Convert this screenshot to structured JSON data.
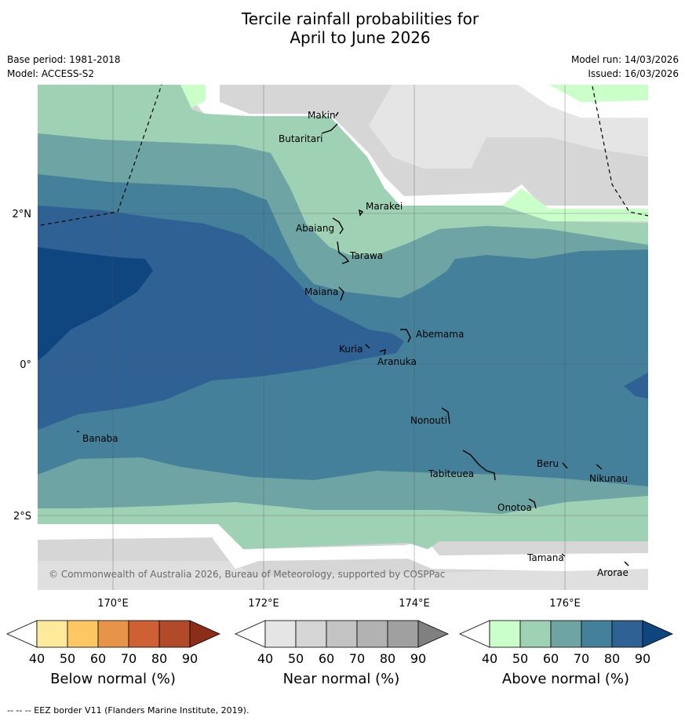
{
  "title_line1": "Tercile rainfall probabilities for",
  "title_line2": "April to June 2026",
  "base_period": "Base period: 1981-2018",
  "model": "Model: ACCESS-S2",
  "model_run": "Model run: 14/03/2026",
  "issued": "Issued: 16/03/2026",
  "axes": {
    "x_ticks": [
      "170°E",
      "172°E",
      "174°E",
      "176°E"
    ],
    "y_ticks": [
      "2°N",
      "0°",
      "2°S"
    ]
  },
  "places": [
    "Makin",
    "Butaritari",
    "Marakei",
    "Abaiang",
    "Tarawa",
    "Maiana",
    "Abemama",
    "Kuria",
    "Aranuka",
    "Banaba",
    "Nonouti",
    "Tabiteuea",
    "Beru",
    "Nikunau",
    "Onotoa",
    "Tamana",
    "Arorae"
  ],
  "copyright": "© Commonwealth of Australia 2026, Bureau of Meteorology, supported by COSPPac",
  "colorbars": [
    {
      "title": "Below normal (%)",
      "ticks": [
        "40",
        "50",
        "60",
        "70",
        "80",
        "90"
      ],
      "colors": [
        "#ffffff",
        "#ffe99a",
        "#fdc863",
        "#e6944a",
        "#cf6035",
        "#b04a29",
        "#8c2d1b"
      ]
    },
    {
      "title": "Near normal (%)",
      "ticks": [
        "40",
        "50",
        "60",
        "70",
        "80",
        "90"
      ],
      "colors": [
        "#ffffff",
        "#e5e5e5",
        "#d5d5d5",
        "#c3c3c3",
        "#b2b2b2",
        "#a0a0a0",
        "#808080"
      ]
    },
    {
      "title": "Above normal (%)",
      "ticks": [
        "40",
        "50",
        "60",
        "70",
        "80",
        "90"
      ],
      "colors": [
        "#ffffff",
        "#caffca",
        "#9fd1b5",
        "#6ea4a3",
        "#44809a",
        "#2f6194",
        "#0f4680"
      ]
    }
  ],
  "footer": "--  --  -- EEZ border V11 (Flanders Marine Institute, 2019)."
}
